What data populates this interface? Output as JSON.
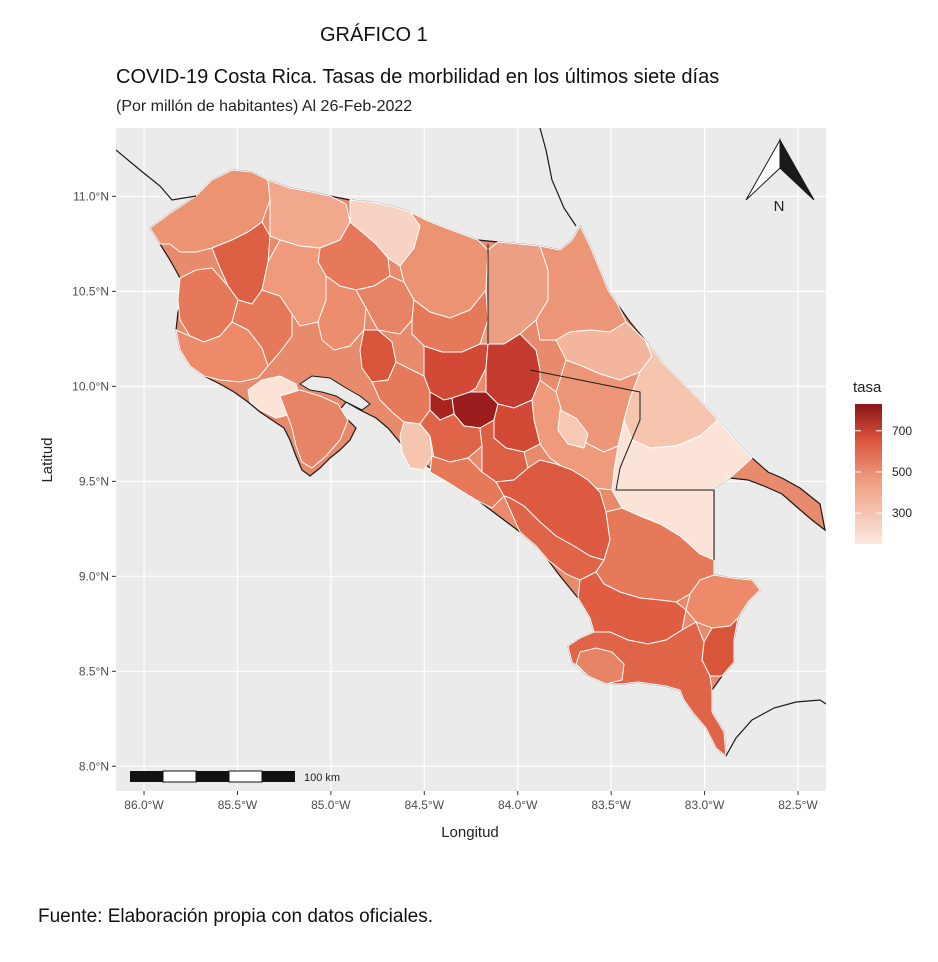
{
  "figure_label": "GRÁFICO 1",
  "title": "COVID-19 Costa Rica. Tasas de morbilidad en los últimos siete días",
  "subtitle": "(Por millón de habitantes) Al 26-Feb-2022",
  "source": "Fuente: Elaboración propia con datos oficiales.",
  "map": {
    "xlabel": "Longitud",
    "ylabel": "Latitud",
    "x_ticks": [
      {
        "value": -86.0,
        "label": "86.0°W"
      },
      {
        "value": -85.5,
        "label": "85.5°W"
      },
      {
        "value": -85.0,
        "label": "85.0°W"
      },
      {
        "value": -84.5,
        "label": "84.5°W"
      },
      {
        "value": -84.0,
        "label": "84.0°W"
      },
      {
        "value": -83.5,
        "label": "83.5°W"
      },
      {
        "value": -83.0,
        "label": "83.0°W"
      },
      {
        "value": -82.5,
        "label": "82.5°W"
      }
    ],
    "y_ticks": [
      {
        "value": 8.0,
        "label": "8.0°N"
      },
      {
        "value": 8.5,
        "label": "8.5°N"
      },
      {
        "value": 9.0,
        "label": "9.0°N"
      },
      {
        "value": 9.5,
        "label": "9.5°N"
      },
      {
        "value": 10.0,
        "label": "10.0°N"
      },
      {
        "value": 10.5,
        "label": "10.5°N"
      },
      {
        "value": 11.0,
        "label": "11.0°N"
      }
    ],
    "xlim": [
      -86.15,
      -82.35
    ],
    "ylim": [
      7.87,
      11.36
    ],
    "north_arrow_label": "N",
    "scale_bar_label": "100 km",
    "panel_background": "#ebebeb",
    "gridline_color": "#ffffff",
    "legend": {
      "title": "tasa",
      "ticks": [
        300,
        500,
        700
      ],
      "range": [
        150,
        830
      ],
      "color_low": "#fbe9df",
      "color_mid": "#e87d5c",
      "color_high": "#8a1418"
    }
  }
}
